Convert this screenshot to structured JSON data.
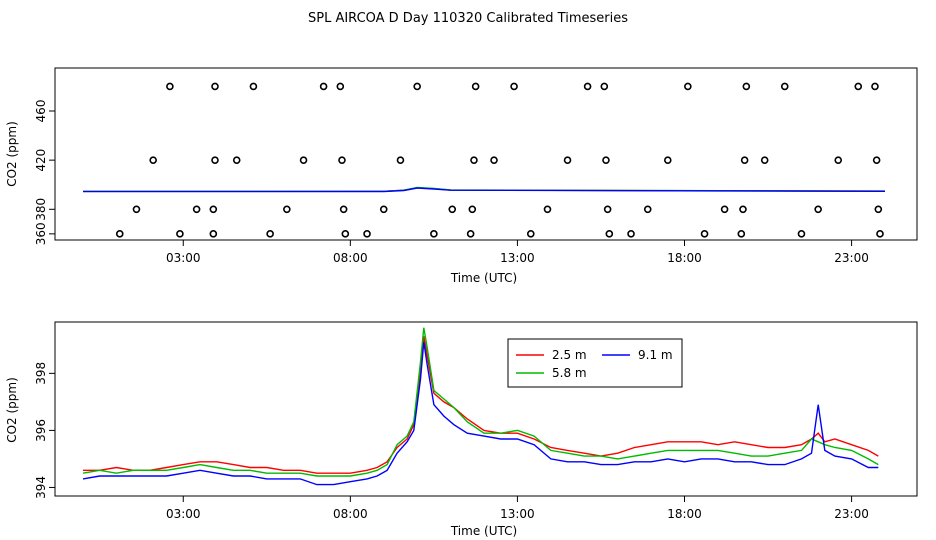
{
  "title": "SPL AIRCOA D  Day 110320  Calibrated Timeseries",
  "chart_data": [
    {
      "type": "scatter",
      "xlabel": "Time (UTC)",
      "ylabel": "CO2 (ppm)",
      "xlim": [
        0.0,
        24.5
      ],
      "ylim": [
        355.0,
        495.0
      ],
      "xticks": [
        3,
        8,
        13,
        18,
        23
      ],
      "xtick_labels": [
        "03:00",
        "08:00",
        "13:00",
        "18:00",
        "23:00"
      ],
      "yticks": [
        360,
        380,
        420,
        460
      ],
      "ytick_labels": [
        "360",
        "380",
        "420",
        "460"
      ],
      "points": [
        {
          "x": 1.1,
          "y": 360
        },
        {
          "x": 1.6,
          "y": 380
        },
        {
          "x": 2.1,
          "y": 420
        },
        {
          "x": 2.6,
          "y": 480
        },
        {
          "x": 2.9,
          "y": 360
        },
        {
          "x": 3.4,
          "y": 380
        },
        {
          "x": 3.9,
          "y": 360
        },
        {
          "x": 3.9,
          "y": 380
        },
        {
          "x": 3.95,
          "y": 420
        },
        {
          "x": 3.95,
          "y": 480
        },
        {
          "x": 4.6,
          "y": 420
        },
        {
          "x": 5.1,
          "y": 480
        },
        {
          "x": 5.6,
          "y": 360
        },
        {
          "x": 6.1,
          "y": 380
        },
        {
          "x": 6.6,
          "y": 420
        },
        {
          "x": 7.2,
          "y": 480
        },
        {
          "x": 7.7,
          "y": 480
        },
        {
          "x": 7.75,
          "y": 420
        },
        {
          "x": 7.8,
          "y": 380
        },
        {
          "x": 7.85,
          "y": 360
        },
        {
          "x": 8.5,
          "y": 360
        },
        {
          "x": 9.0,
          "y": 380
        },
        {
          "x": 9.5,
          "y": 420
        },
        {
          "x": 10.0,
          "y": 480
        },
        {
          "x": 10.5,
          "y": 360
        },
        {
          "x": 11.05,
          "y": 380
        },
        {
          "x": 11.6,
          "y": 360
        },
        {
          "x": 11.65,
          "y": 380
        },
        {
          "x": 11.7,
          "y": 420
        },
        {
          "x": 11.75,
          "y": 480
        },
        {
          "x": 12.3,
          "y": 420
        },
        {
          "x": 12.9,
          "y": 480
        },
        {
          "x": 13.4,
          "y": 360
        },
        {
          "x": 13.9,
          "y": 380
        },
        {
          "x": 14.5,
          "y": 420
        },
        {
          "x": 15.1,
          "y": 480
        },
        {
          "x": 15.6,
          "y": 480
        },
        {
          "x": 15.65,
          "y": 420
        },
        {
          "x": 15.7,
          "y": 380
        },
        {
          "x": 15.75,
          "y": 360
        },
        {
          "x": 16.4,
          "y": 360
        },
        {
          "x": 16.9,
          "y": 380
        },
        {
          "x": 17.5,
          "y": 420
        },
        {
          "x": 18.1,
          "y": 480
        },
        {
          "x": 18.6,
          "y": 360
        },
        {
          "x": 19.2,
          "y": 380
        },
        {
          "x": 19.7,
          "y": 360
        },
        {
          "x": 19.75,
          "y": 380
        },
        {
          "x": 19.8,
          "y": 420
        },
        {
          "x": 19.85,
          "y": 480
        },
        {
          "x": 20.4,
          "y": 420
        },
        {
          "x": 21.0,
          "y": 480
        },
        {
          "x": 21.5,
          "y": 360
        },
        {
          "x": 22.0,
          "y": 380
        },
        {
          "x": 22.6,
          "y": 420
        },
        {
          "x": 23.2,
          "y": 480
        },
        {
          "x": 23.7,
          "y": 480
        },
        {
          "x": 23.75,
          "y": 420
        },
        {
          "x": 23.8,
          "y": 380
        },
        {
          "x": 23.85,
          "y": 360
        }
      ],
      "series": [
        {
          "color": "#ff0000",
          "x": [
            0,
            9,
            9.6,
            10,
            10.5,
            11,
            24
          ],
          "y": [
            394.6,
            394.6,
            395.5,
            397.5,
            396.8,
            395.6,
            394.8
          ]
        },
        {
          "color": "#00cc00",
          "x": [
            0,
            9,
            9.6,
            10,
            10.5,
            11,
            24
          ],
          "y": [
            394.6,
            394.6,
            395.5,
            397.8,
            397.0,
            395.7,
            394.8
          ]
        },
        {
          "color": "#0000ff",
          "x": [
            0,
            9,
            9.6,
            10,
            10.5,
            11,
            24
          ],
          "y": [
            394.4,
            394.5,
            395.3,
            397.3,
            396.5,
            395.5,
            394.6
          ]
        }
      ]
    },
    {
      "type": "line",
      "xlabel": "Time (UTC)",
      "ylabel": "CO2 (ppm)",
      "xlim": [
        0.0,
        24.5
      ],
      "ylim": [
        393.7,
        399.8
      ],
      "xticks": [
        3,
        8,
        13,
        18,
        23
      ],
      "xtick_labels": [
        "03:00",
        "08:00",
        "13:00",
        "18:00",
        "23:00"
      ],
      "yticks": [
        394,
        396,
        398
      ],
      "ytick_labels": [
        "394",
        "396",
        "398"
      ],
      "legend_position": "top-center",
      "series": [
        {
          "name": "2.5 m",
          "color": "#ff0000",
          "x": [
            0.0,
            0.5,
            1.0,
            1.5,
            2.0,
            2.5,
            3.0,
            3.5,
            4.0,
            4.5,
            5.0,
            5.5,
            6.0,
            6.5,
            7.0,
            7.5,
            8.0,
            8.5,
            8.8,
            9.1,
            9.4,
            9.7,
            9.9,
            10.1,
            10.2,
            10.3,
            10.5,
            10.8,
            11.1,
            11.5,
            12.0,
            12.5,
            13.0,
            13.5,
            14.0,
            14.5,
            15.0,
            15.5,
            16.0,
            16.5,
            17.0,
            17.5,
            18.0,
            18.5,
            19.0,
            19.5,
            20.0,
            20.5,
            21.0,
            21.5,
            21.8,
            22.0,
            22.2,
            22.5,
            23.0,
            23.5,
            23.8
          ],
          "y": [
            394.6,
            394.6,
            394.7,
            394.6,
            394.6,
            394.7,
            394.8,
            394.9,
            394.9,
            394.8,
            394.7,
            394.7,
            394.6,
            394.6,
            394.5,
            394.5,
            394.5,
            394.6,
            394.7,
            394.9,
            395.4,
            395.7,
            396.2,
            398.1,
            399.3,
            398.6,
            397.3,
            397.0,
            396.8,
            396.4,
            396.0,
            395.9,
            395.9,
            395.7,
            395.4,
            395.3,
            395.2,
            395.1,
            395.2,
            395.4,
            395.5,
            395.6,
            395.6,
            395.6,
            395.5,
            395.6,
            395.5,
            395.4,
            395.4,
            395.5,
            395.7,
            395.9,
            395.6,
            395.7,
            395.5,
            395.3,
            395.1
          ]
        },
        {
          "name": "5.8 m",
          "color": "#00bb00",
          "x": [
            0.0,
            0.5,
            1.0,
            1.5,
            2.0,
            2.5,
            3.0,
            3.5,
            4.0,
            4.5,
            5.0,
            5.5,
            6.0,
            6.5,
            7.0,
            7.5,
            8.0,
            8.5,
            8.8,
            9.1,
            9.4,
            9.7,
            9.9,
            10.1,
            10.2,
            10.3,
            10.5,
            10.8,
            11.1,
            11.5,
            12.0,
            12.5,
            13.0,
            13.5,
            14.0,
            14.5,
            15.0,
            15.5,
            16.0,
            16.5,
            17.0,
            17.5,
            18.0,
            18.5,
            19.0,
            19.5,
            20.0,
            20.5,
            21.0,
            21.5,
            21.8,
            22.0,
            22.2,
            22.5,
            23.0,
            23.5,
            23.8
          ],
          "y": [
            394.5,
            394.6,
            394.5,
            394.6,
            394.6,
            394.6,
            394.7,
            394.8,
            394.7,
            394.6,
            394.6,
            394.5,
            394.5,
            394.5,
            394.4,
            394.4,
            394.4,
            394.5,
            394.6,
            394.8,
            395.5,
            395.8,
            396.3,
            398.4,
            399.6,
            398.9,
            397.4,
            397.1,
            396.8,
            396.3,
            395.9,
            395.9,
            396.0,
            395.8,
            395.3,
            395.2,
            395.1,
            395.1,
            395.0,
            395.1,
            395.2,
            395.3,
            395.3,
            395.3,
            395.3,
            395.2,
            395.1,
            395.1,
            395.2,
            395.3,
            395.7,
            395.6,
            395.5,
            395.4,
            395.3,
            395.0,
            394.8
          ]
        },
        {
          "name": "9.1 m",
          "color": "#0000ff",
          "x": [
            0.0,
            0.5,
            1.0,
            1.5,
            2.0,
            2.5,
            3.0,
            3.5,
            4.0,
            4.5,
            5.0,
            5.5,
            6.0,
            6.5,
            7.0,
            7.5,
            8.0,
            8.5,
            8.8,
            9.1,
            9.4,
            9.7,
            9.9,
            10.1,
            10.2,
            10.3,
            10.5,
            10.8,
            11.1,
            11.5,
            12.0,
            12.5,
            13.0,
            13.5,
            14.0,
            14.5,
            15.0,
            15.5,
            16.0,
            16.5,
            17.0,
            17.5,
            18.0,
            18.5,
            19.0,
            19.5,
            20.0,
            20.5,
            21.0,
            21.5,
            21.8,
            22.0,
            22.2,
            22.5,
            23.0,
            23.5,
            23.8
          ],
          "y": [
            394.3,
            394.4,
            394.4,
            394.4,
            394.4,
            394.4,
            394.5,
            394.6,
            394.5,
            394.4,
            394.4,
            394.3,
            394.3,
            394.3,
            394.1,
            394.1,
            394.2,
            394.3,
            394.4,
            394.6,
            395.2,
            395.6,
            396.0,
            397.8,
            399.1,
            398.3,
            396.9,
            396.5,
            396.2,
            395.9,
            395.8,
            395.7,
            395.7,
            395.5,
            395.0,
            394.9,
            394.9,
            394.8,
            394.8,
            394.9,
            394.9,
            395.0,
            394.9,
            395.0,
            395.0,
            394.9,
            394.9,
            394.8,
            394.8,
            395.0,
            395.2,
            396.9,
            395.3,
            395.1,
            395.0,
            394.7,
            394.7
          ]
        }
      ]
    }
  ]
}
